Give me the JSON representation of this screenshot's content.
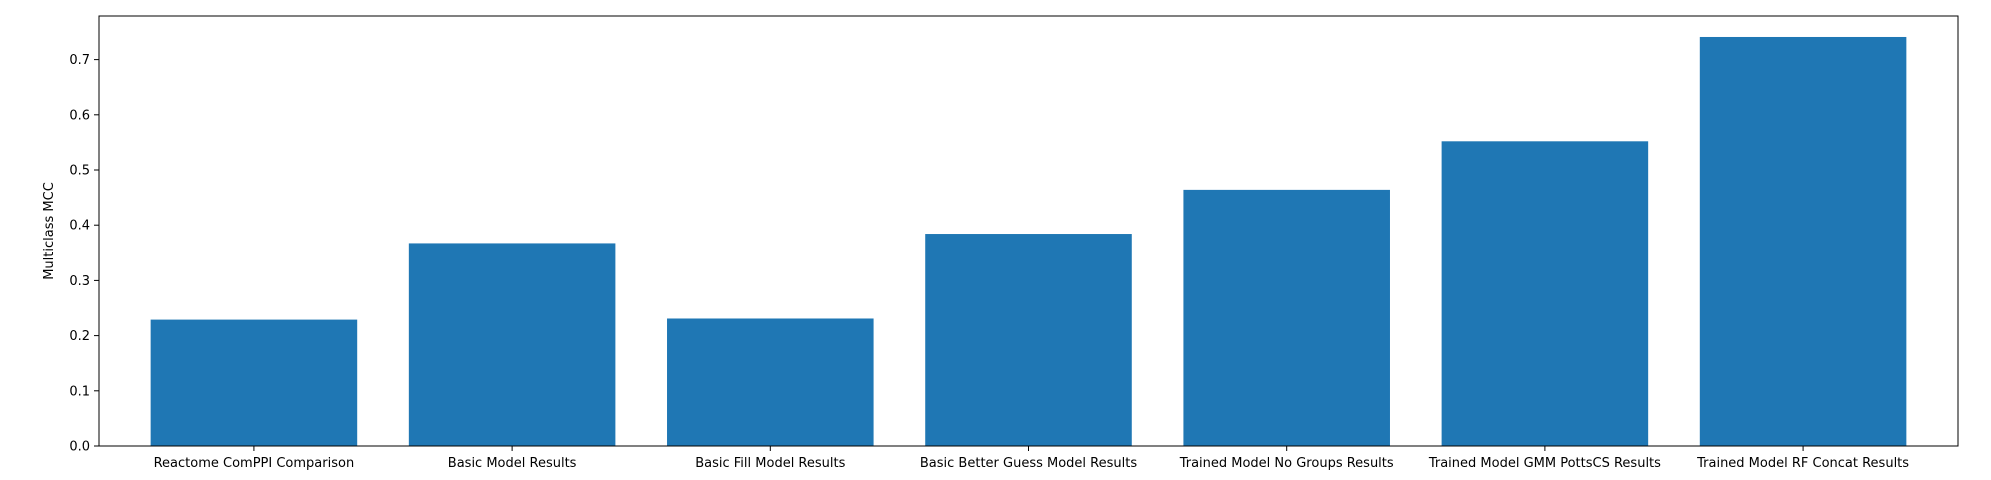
{
  "chart_data": {
    "type": "bar",
    "title": "",
    "xlabel": "",
    "ylabel": "Multiclass MCC",
    "categories": [
      "Reactome ComPPI Comparison",
      "Basic Model Results",
      "Basic Fill Model Results",
      "Basic Better Guess Model Results",
      "Trained Model No Groups Results",
      "Trained Model GMM PottsCS Results",
      "Trained Model RF Concat Results"
    ],
    "values": [
      0.229,
      0.367,
      0.231,
      0.384,
      0.464,
      0.552,
      0.741
    ],
    "ylim": [
      0,
      0.779
    ],
    "yticks": [
      0.0,
      0.1,
      0.2,
      0.3,
      0.4,
      0.5,
      0.6,
      0.7
    ],
    "ytick_labels": [
      "0.0",
      "0.1",
      "0.2",
      "0.3",
      "0.4",
      "0.5",
      "0.6",
      "0.7"
    ],
    "bar_color": "#1f77b4",
    "grid": false,
    "legend": "none"
  }
}
